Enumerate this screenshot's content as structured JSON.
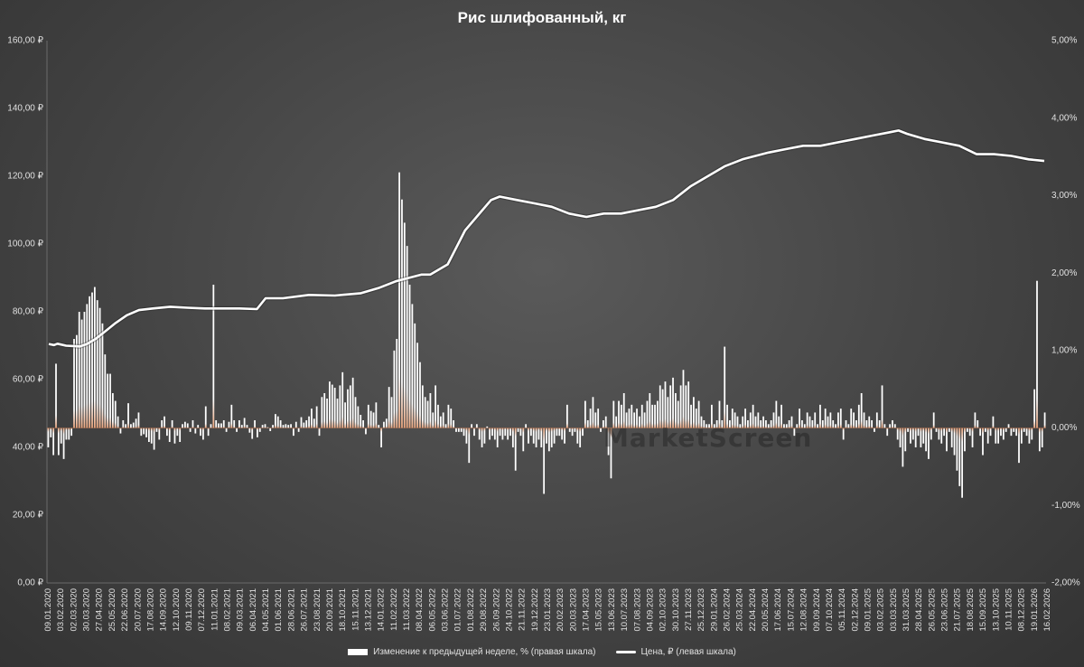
{
  "chart_data": {
    "type": "bar+line",
    "title": "Рис шлифованный, кг",
    "left_axis": {
      "ticks": [
        "0,00 ₽",
        "20,00 ₽",
        "40,00 ₽",
        "60,00 ₽",
        "80,00 ₽",
        "100,00 ₽",
        "120,00 ₽",
        "140,00 ₽",
        "160,00 ₽"
      ],
      "range": [
        0,
        160
      ]
    },
    "right_axis": {
      "ticks": [
        "-2,00%",
        "-1,00%",
        "0,00%",
        "1,00%",
        "2,00%",
        "3,00%",
        "4,00%",
        "5,00%"
      ],
      "range": [
        -2,
        5
      ]
    },
    "x_tick_labels": [
      "09.01.2020",
      "03.02.2020",
      "02.03.2020",
      "30.03.2020",
      "27.04.2020",
      "25.05.2020",
      "22.06.2020",
      "20.07.2020",
      "17.08.2020",
      "14.09.2020",
      "12.10.2020",
      "09.11.2020",
      "07.12.2020",
      "11.01.2021",
      "08.02.2021",
      "09.03.2021",
      "06.04.2021",
      "04.05.2021",
      "01.06.2021",
      "28.06.2021",
      "26.07.2021",
      "23.08.2021",
      "20.09.2021",
      "18.10.2021",
      "15.11.2021",
      "13.12.2021",
      "14.01.2022",
      "11.02.2022",
      "11.03.2022",
      "08.04.2022",
      "06.05.2022",
      "03.06.2022",
      "01.07.2022",
      "01.08.2022",
      "29.08.2022",
      "26.09.2022",
      "24.10.2022",
      "21.11.2022",
      "19.12.2022",
      "23.01.2023",
      "20.02.2023",
      "20.03.2023",
      "17.04.2023",
      "15.05.2023",
      "13.06.2023",
      "10.07.2023",
      "07.08.2023",
      "04.09.2023",
      "02.10.2023",
      "30.10.2023",
      "27.11.2023",
      "25.12.2023",
      "29.01.2024",
      "26.02.2024",
      "25.03.2024",
      "22.04.2024",
      "20.05.2024",
      "17.06.2024",
      "15.07.2024",
      "12.08.2024",
      "09.09.2024",
      "07.10.2024",
      "05.11.2024",
      "02.12.2024",
      "09.01.2025",
      "03.02.2025",
      "03.03.2025",
      "31.03.2025",
      "28.04.2025",
      "26.05.2025",
      "23.06.2025",
      "21.07.2025",
      "18.08.2025",
      "15.09.2025",
      "13.10.2025",
      "10.11.2025",
      "08.12.2025",
      "19.01.2026",
      "16.02.2026"
    ],
    "series": [
      {
        "name": "Изменение к предыдущей неделе, % (правая шкала)",
        "type": "bar",
        "axis": "right",
        "values": [
          -0.25,
          -0.12,
          -0.35,
          0.83,
          -0.35,
          -0.2,
          -0.4,
          -0.15,
          -0.15,
          -0.1,
          1.15,
          1.2,
          1.5,
          1.4,
          1.5,
          1.6,
          1.7,
          1.75,
          1.82,
          1.65,
          1.55,
          1.35,
          0.95,
          0.7,
          0.7,
          0.45,
          0.35,
          0.15,
          -0.07,
          0.1,
          0.05,
          0.32,
          0.05,
          0.07,
          0.12,
          0.2,
          -0.1,
          -0.08,
          -0.12,
          -0.18,
          -0.2,
          -0.28,
          -0.05,
          -0.15,
          0.1,
          0.15,
          -0.1,
          -0.18,
          0.1,
          -0.2,
          -0.1,
          -0.18,
          0.05,
          0.08,
          0.06,
          -0.05,
          0.1,
          -0.07,
          0.04,
          -0.1,
          -0.15,
          0.28,
          -0.1,
          0.05,
          1.85,
          0.1,
          0.06,
          0.06,
          0.1,
          -0.05,
          0.08,
          0.3,
          0.1,
          -0.05,
          0.1,
          0.04,
          0.13,
          0.04,
          -0.06,
          -0.14,
          0.1,
          -0.12,
          -0.05,
          0.04,
          0.05,
          0.01,
          -0.04,
          0.04,
          0.18,
          0.15,
          0.1,
          0.04,
          0.05,
          0.04,
          0.05,
          -0.1,
          0.08,
          -0.05,
          0.14,
          0.07,
          0.1,
          0.15,
          0.25,
          0.12,
          0.28,
          -0.1,
          0.4,
          0.45,
          0.38,
          0.6,
          0.56,
          0.52,
          0.38,
          0.55,
          0.72,
          0.33,
          0.5,
          0.55,
          0.65,
          0.4,
          0.28,
          0.17,
          0.1,
          -0.08,
          0.3,
          0.22,
          0.2,
          0.33,
          0.04,
          -0.25,
          0.08,
          0.12,
          0.53,
          0.4,
          1.0,
          1.15,
          3.3,
          2.95,
          2.65,
          2.35,
          1.85,
          1.6,
          1.35,
          1.1,
          0.85,
          0.55,
          0.4,
          0.35,
          0.45,
          0.2,
          0.55,
          0.3,
          0.15,
          0.2,
          0.05,
          0.3,
          0.25,
          0.1,
          -0.05,
          -0.05,
          -0.05,
          -0.1,
          -0.2,
          -0.45,
          0.05,
          -0.1,
          0.05,
          -0.15,
          -0.25,
          -0.2,
          0.02,
          -0.15,
          -0.1,
          -0.15,
          -0.25,
          -0.1,
          -0.15,
          -0.1,
          -0.15,
          -0.1,
          -0.25,
          -0.55,
          -0.05,
          -0.1,
          -0.3,
          0.05,
          -0.2,
          -0.1,
          -0.2,
          -0.25,
          -0.15,
          -0.25,
          -0.85,
          -0.2,
          -0.3,
          -0.25,
          -0.2,
          -0.1,
          -0.1,
          -0.15,
          -0.2,
          0.3,
          -0.05,
          -0.1,
          -0.05,
          -0.2,
          -0.25,
          -0.1,
          0.35,
          0.1,
          0.25,
          0.4,
          0.2,
          0.25,
          -0.05,
          0.1,
          0.15,
          -0.35,
          -0.65,
          0.35,
          0.15,
          0.35,
          0.3,
          0.45,
          0.2,
          0.25,
          0.3,
          0.2,
          0.25,
          0.15,
          0.3,
          0.2,
          0.35,
          0.45,
          0.3,
          0.3,
          0.35,
          0.55,
          0.5,
          0.6,
          0.4,
          0.55,
          0.65,
          0.45,
          0.35,
          0.55,
          0.75,
          0.55,
          0.6,
          0.3,
          0.4,
          0.25,
          0.35,
          0.15,
          0.1,
          0.05,
          0.05,
          0.3,
          0.05,
          0.1,
          0.35,
          0.1,
          1.05,
          0.3,
          0.1,
          0.25,
          0.2,
          0.15,
          0.05,
          0.15,
          0.25,
          0.1,
          0.2,
          0.3,
          0.15,
          0.2,
          0.1,
          0.15,
          0.1,
          0.05,
          0.1,
          0.2,
          0.35,
          0.15,
          0.3,
          0.05,
          0.05,
          0.1,
          0.15,
          -0.1,
          0.05,
          0.25,
          0.1,
          0.05,
          0.2,
          0.15,
          0.1,
          0.2,
          0.05,
          0.3,
          0.1,
          0.25,
          0.15,
          0.2,
          0.1,
          0.05,
          0.2,
          0.25,
          -0.15,
          0.1,
          0.05,
          0.25,
          0.2,
          0.1,
          0.3,
          0.45,
          0.2,
          0.1,
          0.15,
          0.1,
          -0.05,
          0.2,
          0.1,
          0.55,
          0.05,
          -0.1,
          0.05,
          0.1,
          0.05,
          -0.15,
          -0.25,
          -0.5,
          -0.3,
          -0.05,
          -0.2,
          -0.15,
          -0.25,
          -0.1,
          -0.25,
          -0.2,
          -0.3,
          -0.4,
          -0.15,
          0.2,
          -0.05,
          -0.15,
          -0.2,
          -0.1,
          -0.3,
          -0.05,
          -0.25,
          -0.35,
          -0.55,
          -0.75,
          -0.9,
          -0.3,
          -0.05,
          -0.1,
          -0.25,
          0.2,
          0.1,
          -0.1,
          -0.35,
          -0.05,
          -0.2,
          -0.1,
          0.15,
          -0.2,
          -0.2,
          -0.1,
          -0.15,
          -0.05,
          0.05,
          -0.1,
          -0.05,
          -0.1,
          -0.45,
          -0.2,
          -0.05,
          -0.1,
          -0.2,
          -0.15,
          0.5,
          1.9,
          -0.3,
          -0.25,
          0.2
        ]
      },
      {
        "name": "Цена, ₽ (левая шкала)",
        "type": "line",
        "axis": "left",
        "points": [
          [
            0,
            70.5
          ],
          [
            6,
            70.2
          ],
          [
            10,
            70.6
          ],
          [
            20,
            70
          ],
          [
            36,
            69.8
          ],
          [
            44,
            70.5
          ],
          [
            54,
            72
          ],
          [
            64,
            74
          ],
          [
            76,
            76.5
          ],
          [
            90,
            79
          ],
          [
            104,
            80.5
          ],
          [
            120,
            81
          ],
          [
            140,
            81.5
          ],
          [
            160,
            81.2
          ],
          [
            180,
            81
          ],
          [
            200,
            81
          ],
          [
            220,
            81
          ],
          [
            240,
            80.8
          ],
          [
            250,
            84
          ],
          [
            270,
            84
          ],
          [
            300,
            85
          ],
          [
            330,
            84.8
          ],
          [
            360,
            85.5
          ],
          [
            380,
            87
          ],
          [
            400,
            89
          ],
          [
            430,
            91
          ],
          [
            440,
            91
          ],
          [
            460,
            94
          ],
          [
            480,
            104
          ],
          [
            500,
            110
          ],
          [
            510,
            113
          ],
          [
            520,
            114
          ],
          [
            540,
            113
          ],
          [
            560,
            112
          ],
          [
            580,
            111
          ],
          [
            600,
            109
          ],
          [
            620,
            108
          ],
          [
            640,
            109
          ],
          [
            660,
            109
          ],
          [
            680,
            110
          ],
          [
            700,
            111
          ],
          [
            720,
            113
          ],
          [
            740,
            117
          ],
          [
            760,
            120
          ],
          [
            780,
            123
          ],
          [
            800,
            125
          ],
          [
            830,
            127
          ],
          [
            850,
            128
          ],
          [
            870,
            129
          ],
          [
            890,
            129
          ],
          [
            910,
            130
          ],
          [
            930,
            131
          ],
          [
            950,
            132
          ],
          [
            970,
            133
          ],
          [
            980,
            133.5
          ],
          [
            990,
            132.5
          ],
          [
            1010,
            131
          ],
          [
            1030,
            130
          ],
          [
            1050,
            129
          ],
          [
            1070,
            126.5
          ],
          [
            1090,
            126.5
          ],
          [
            1110,
            126
          ],
          [
            1130,
            125
          ],
          [
            1148,
            124.5
          ]
        ]
      }
    ],
    "legend_placement": "bottom",
    "watermark": "MarketScreen"
  },
  "legend": {
    "bar_label": "Изменение к предыдущей неделе, % (правая шкала)",
    "line_label": "Цена, ₽ (левая шкала)"
  }
}
